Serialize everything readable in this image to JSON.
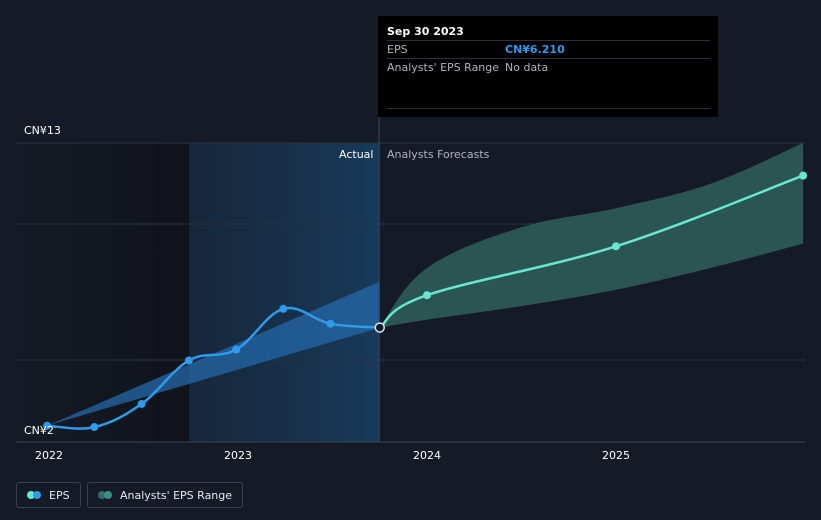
{
  "tooltip": {
    "date": "Sep 30 2023",
    "rows": [
      {
        "label": "EPS",
        "value": "CN¥6.210"
      },
      {
        "label": "Analysts' EPS Range",
        "value": "No data"
      }
    ]
  },
  "y_axis": {
    "top_label": "CN¥13",
    "bottom_label": "CN¥2"
  },
  "x_axis": {
    "ticks": [
      "2022",
      "2023",
      "2024",
      "2025"
    ]
  },
  "sections": {
    "actual": "Actual",
    "forecast": "Analysts Forecasts"
  },
  "legend": [
    {
      "label": "EPS",
      "colors": [
        "#2f9bea",
        "#68e6d0"
      ]
    },
    {
      "label": "Analysts' EPS Range",
      "colors": [
        "#2d6f6a",
        "#2d6f6a"
      ]
    }
  ],
  "colors": {
    "eps_actual": "#2f9bea",
    "eps_forecast": "#68e6d0",
    "range_forecast": "#2f5f5b",
    "range_actual": "#2468a8",
    "background": "#151b26"
  },
  "chart_data": {
    "type": "line",
    "x_unit": "year",
    "ylim": [
      2,
      13
    ],
    "series": [
      {
        "name": "EPS",
        "segment": "actual",
        "x": [
          2021.99,
          2022.24,
          2022.49,
          2022.74,
          2022.99,
          2023.24,
          2023.49,
          2023.75
        ],
        "y": [
          2.6,
          2.55,
          3.4,
          5.0,
          5.4,
          6.9,
          6.35,
          6.21
        ]
      },
      {
        "name": "EPS",
        "segment": "forecast",
        "x": [
          2023.75,
          2024.0,
          2025.0,
          2025.99
        ],
        "y": [
          6.21,
          7.4,
          9.2,
          11.8
        ]
      }
    ],
    "actual_band": {
      "x": [
        2021.99,
        2023.75
      ],
      "low": [
        2.6,
        6.2
      ],
      "high": [
        2.6,
        7.9
      ]
    },
    "analyst_range": {
      "x": [
        2023.75,
        2024.0,
        2024.5,
        2025.0,
        2025.5,
        2025.99
      ],
      "low": [
        6.21,
        6.5,
        7.0,
        7.6,
        8.4,
        9.3
      ],
      "high": [
        6.21,
        8.4,
        9.9,
        10.6,
        11.5,
        13.0
      ]
    },
    "highlight_point": {
      "x": 2023.75,
      "y": 6.21
    },
    "grid": true
  }
}
